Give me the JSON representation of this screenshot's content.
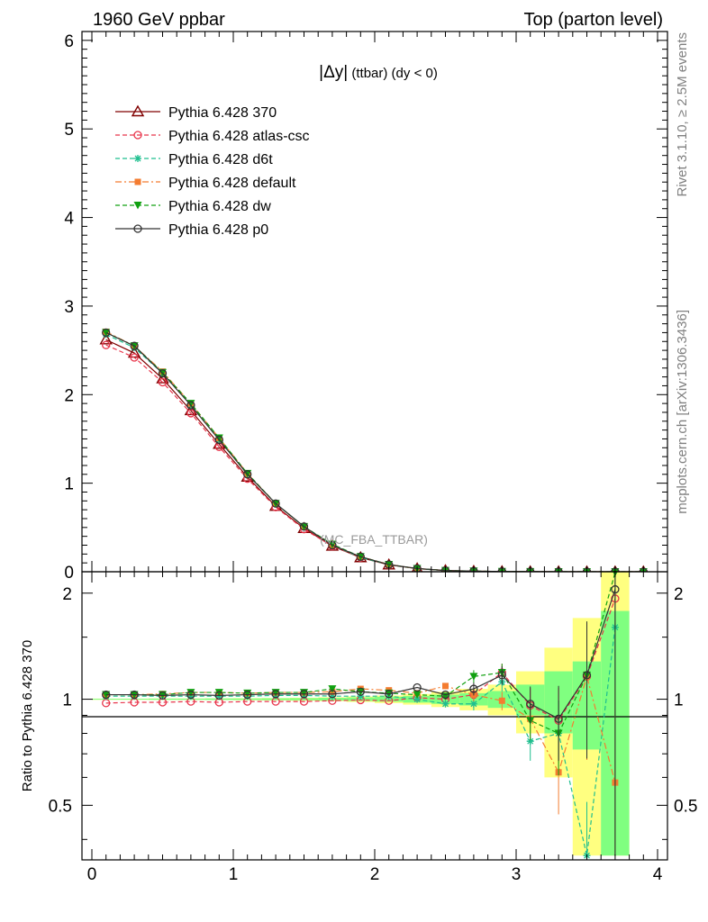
{
  "header": {
    "left": "1960 GeV ppbar",
    "right": "Top (parton level)"
  },
  "side_labels": {
    "rivet": "Rivet 3.1.10, ≥ 2.5M events",
    "mcplots": "mcplots.cern.ch [arXiv:1306.3436]"
  },
  "plot_title": {
    "main": "|Δy|",
    "sub": " (ttbar) (dy < 0)"
  },
  "watermark": "(MC_FBA_TTBAR)",
  "ratio_ylabel": "Ratio to Pythia 6.428 370",
  "chart_data": [
    {
      "type": "line",
      "panel": "main",
      "xlim": [
        -0.07,
        4.07
      ],
      "ylim": [
        0,
        6.1
      ],
      "yticks_major": [
        0,
        1,
        2,
        3,
        4,
        5,
        6
      ],
      "x": [
        0.1,
        0.3,
        0.5,
        0.7,
        0.9,
        1.1,
        1.3,
        1.5,
        1.7,
        1.9,
        2.1,
        2.3,
        2.5,
        2.7,
        2.9,
        3.1,
        3.3,
        3.5,
        3.7,
        3.9
      ],
      "legend_placement": "upper-left",
      "series": [
        {
          "name": "Pythia 6.428 370",
          "color": "#800000",
          "marker": "triangle-open",
          "dash": "solid",
          "values": [
            2.62,
            2.47,
            2.18,
            1.82,
            1.44,
            1.07,
            0.74,
            0.49,
            0.29,
            0.16,
            0.078,
            0.035,
            0.014,
            0.006,
            0.0025,
            0.0011,
            0.0005,
            0.0002,
            8e-05,
            3e-05
          ]
        },
        {
          "name": "Pythia 6.428 atlas-csc",
          "color": "#e8344a",
          "marker": "circle-open",
          "dash": "dashed",
          "values": [
            2.56,
            2.42,
            2.14,
            1.79,
            1.41,
            1.05,
            0.73,
            0.48,
            0.29,
            0.16,
            0.077,
            0.035,
            0.014,
            0.006,
            0.0026,
            0.0011,
            0.0005,
            0.0002,
            0.0002,
            3e-05
          ]
        },
        {
          "name": "Pythia 6.428 d6t",
          "color": "#1fbf8f",
          "marker": "star",
          "dash": "dashed",
          "values": [
            2.68,
            2.53,
            2.24,
            1.88,
            1.49,
            1.1,
            0.77,
            0.51,
            0.3,
            0.16,
            0.08,
            0.035,
            0.014,
            0.006,
            0.0028,
            0.0009,
            0.0004,
            7e-05,
            0.00012,
            3e-05
          ]
        },
        {
          "name": "Pythia 6.428 default",
          "color": "#f47c30",
          "marker": "square",
          "dash": "dashdot",
          "values": [
            2.71,
            2.55,
            2.26,
            1.9,
            1.51,
            1.11,
            0.77,
            0.51,
            0.3,
            0.17,
            0.083,
            0.036,
            0.015,
            0.006,
            0.0025,
            0.0009,
            0.0003,
            0.0002,
            5e-05,
            3e-05
          ]
        },
        {
          "name": "Pythia 6.428 dw",
          "color": "#10a010",
          "marker": "triangle-down",
          "dash": "dashed",
          "values": [
            2.7,
            2.55,
            2.25,
            1.9,
            1.51,
            1.11,
            0.77,
            0.51,
            0.31,
            0.17,
            0.081,
            0.036,
            0.014,
            0.007,
            0.0029,
            0.0009,
            0.0004,
            0.0002,
            0.00028,
            3e-05
          ]
        },
        {
          "name": "Pythia 6.428 p0",
          "color": "#333333",
          "marker": "circle-open",
          "dash": "solid",
          "values": [
            2.7,
            2.55,
            2.24,
            1.88,
            1.49,
            1.1,
            0.77,
            0.51,
            0.3,
            0.17,
            0.081,
            0.037,
            0.014,
            0.007,
            0.0029,
            0.0011,
            0.00045,
            0.0002,
            0.0002,
            3e-05
          ]
        }
      ]
    },
    {
      "type": "line",
      "panel": "ratio",
      "xlim": [
        -0.07,
        4.07
      ],
      "ylim": [
        0.35,
        2.3
      ],
      "xticks": [
        0,
        1,
        2,
        3,
        4
      ],
      "yticks": [
        0.5,
        1,
        2
      ],
      "x": [
        0.1,
        0.3,
        0.5,
        0.7,
        0.9,
        1.1,
        1.3,
        1.5,
        1.7,
        1.9,
        2.1,
        2.3,
        2.5,
        2.7,
        2.9,
        3.1,
        3.3,
        3.5,
        3.7
      ],
      "bands": {
        "x_edges": [
          0.0,
          0.2,
          0.4,
          0.6,
          0.8,
          1.0,
          1.2,
          1.4,
          1.6,
          1.8,
          2.0,
          2.2,
          2.4,
          2.6,
          2.8,
          3.0,
          3.2,
          3.4,
          3.6,
          3.8
        ],
        "outer_color": "#ffff80",
        "inner_color": "#80ff80",
        "outer_halfwidth": [
          0.004,
          0.004,
          0.005,
          0.005,
          0.006,
          0.007,
          0.008,
          0.01,
          0.013,
          0.018,
          0.025,
          0.035,
          0.05,
          0.07,
          0.1,
          0.2,
          0.4,
          0.7,
          1.5
        ],
        "inner_halfwidth": [
          0.003,
          0.003,
          0.004,
          0.004,
          0.005,
          0.005,
          0.006,
          0.007,
          0.009,
          0.012,
          0.016,
          0.022,
          0.03,
          0.04,
          0.055,
          0.1,
          0.2,
          0.28,
          0.78
        ]
      },
      "series": [
        {
          "name": "Pythia 6.428 370",
          "color": "#800000",
          "values": [
            1,
            1,
            1,
            1,
            1,
            1,
            1,
            1,
            1,
            1,
            1,
            1,
            1,
            1,
            1,
            1,
            1,
            1,
            1
          ]
        },
        {
          "name": "Pythia 6.428 atlas-csc",
          "color": "#e8344a",
          "values": [
            0.975,
            0.98,
            0.98,
            0.985,
            0.98,
            0.985,
            0.985,
            0.985,
            0.99,
            0.995,
            0.99,
            1.01,
            1.0,
            1.03,
            1.19,
            0.96,
            0.87,
            1.16,
            1.93
          ]
        },
        {
          "name": "Pythia 6.428 d6t",
          "color": "#1fbf8f",
          "values": [
            1.02,
            1.02,
            1.02,
            1.02,
            1.02,
            1.02,
            1.025,
            1.025,
            1.02,
            1.02,
            1.02,
            1.0,
            0.97,
            0.97,
            1.12,
            0.76,
            0.8,
            0.36,
            1.6
          ]
        },
        {
          "name": "Pythia 6.428 default",
          "color": "#f47c30",
          "values": [
            1.03,
            1.03,
            1.035,
            1.045,
            1.045,
            1.04,
            1.045,
            1.045,
            1.05,
            1.07,
            1.06,
            1.04,
            1.09,
            1.03,
            0.99,
            0.88,
            0.62,
            1.16,
            0.58
          ]
        },
        {
          "name": "Pythia 6.428 dw",
          "color": "#10a010",
          "values": [
            1.03,
            1.03,
            1.03,
            1.045,
            1.045,
            1.04,
            1.045,
            1.045,
            1.07,
            1.05,
            1.04,
            1.03,
            1.02,
            1.16,
            1.19,
            0.87,
            0.8,
            1.17,
            2.29
          ]
        },
        {
          "name": "Pythia 6.428 p0",
          "color": "#333333",
          "values": [
            1.03,
            1.03,
            1.025,
            1.03,
            1.025,
            1.03,
            1.035,
            1.035,
            1.035,
            1.05,
            1.035,
            1.08,
            1.03,
            1.07,
            1.17,
            0.97,
            0.88,
            1.17,
            2.05
          ]
        }
      ]
    }
  ]
}
